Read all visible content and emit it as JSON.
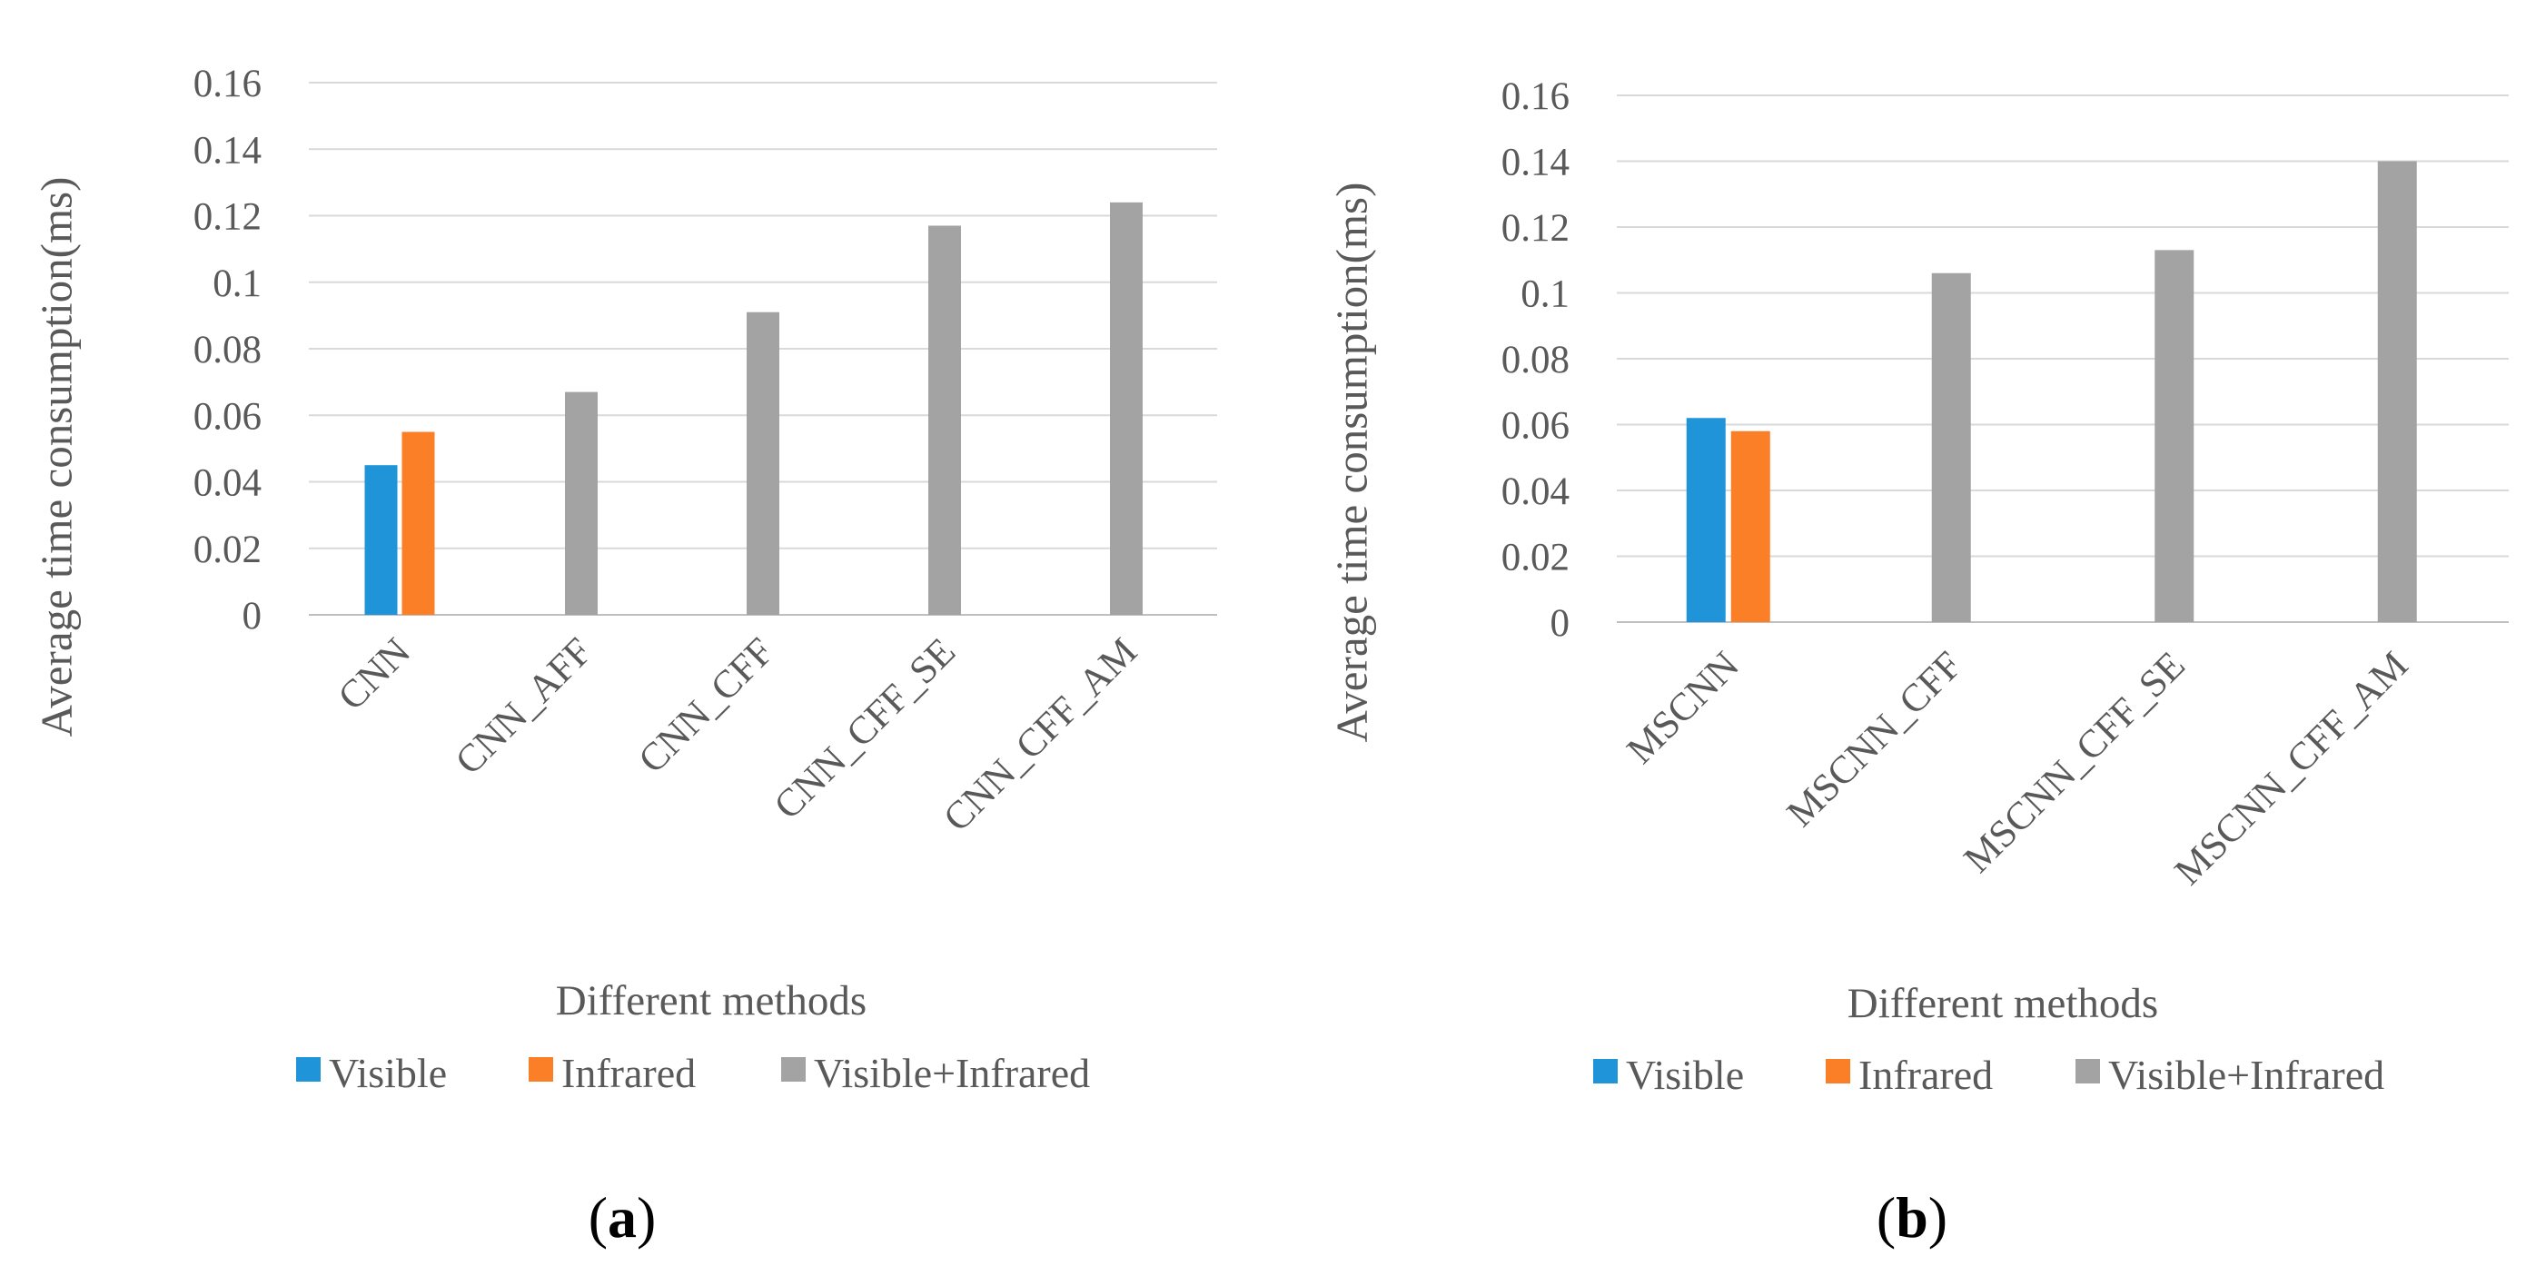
{
  "colors": {
    "visible": "#1f94d8",
    "infrared": "#fb7f26",
    "visible_infrared": "#a3a3a3",
    "grid": "#d9d9d9",
    "text": "#595959"
  },
  "chart_data": [
    {
      "type": "bar",
      "panel_label": "a",
      "title": "",
      "xlabel": "Different methods",
      "ylabel": "Average time consumption(ms)",
      "ylim": [
        0,
        0.16
      ],
      "yticks": [
        "0",
        "0.02",
        "0.04",
        "0.06",
        "0.08",
        "0.1",
        "0.12",
        "0.14",
        "0.16"
      ],
      "grid": true,
      "legend_position": "bottom",
      "categories": [
        "CNN",
        "CNN_AFF",
        "CNN_CFF",
        "CNN_CFF_SE",
        "CNN_CFF_AM"
      ],
      "series": [
        {
          "name": "Visible",
          "values": [
            0.045,
            null,
            null,
            null,
            null
          ]
        },
        {
          "name": "Infrared",
          "values": [
            0.055,
            null,
            null,
            null,
            null
          ]
        },
        {
          "name": "Visible+Infrared",
          "values": [
            null,
            0.067,
            0.091,
            0.117,
            0.124
          ]
        }
      ]
    },
    {
      "type": "bar",
      "panel_label": "b",
      "title": "",
      "xlabel": "Different methods",
      "ylabel": "Average time consumption(ms)",
      "ylim": [
        0,
        0.16
      ],
      "yticks": [
        "0",
        "0.02",
        "0.04",
        "0.06",
        "0.08",
        "0.1",
        "0.12",
        "0.14",
        "0.16"
      ],
      "grid": true,
      "legend_position": "bottom",
      "categories": [
        "MSCNN",
        "MSCNN_CFF",
        "MSCNN_CFF_SE",
        "MSCNN_CFF_AM"
      ],
      "series": [
        {
          "name": "Visible",
          "values": [
            0.062,
            null,
            null,
            null
          ]
        },
        {
          "name": "Infrared",
          "values": [
            0.058,
            null,
            null,
            null
          ]
        },
        {
          "name": "Visible+Infrared",
          "values": [
            null,
            0.106,
            0.113,
            0.14
          ]
        }
      ]
    }
  ]
}
